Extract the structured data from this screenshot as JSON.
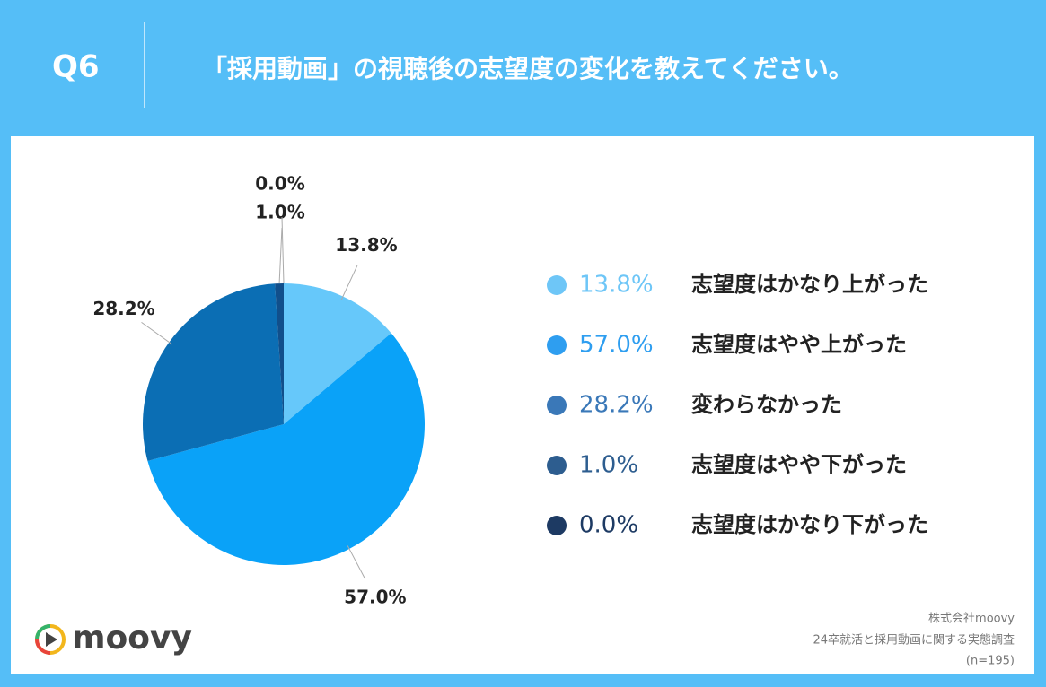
{
  "header": {
    "label": "Q6",
    "title": "「採用動画」の視聴後の志望度の変化を教えてください。"
  },
  "chart_data": {
    "type": "pie",
    "categories": [
      "志望度はかなり上がった",
      "志望度はやや上がった",
      "変わらなかった",
      "志望度はやや下がった",
      "志望度はかなり下がった"
    ],
    "values": [
      13.8,
      57.0,
      28.2,
      1.0,
      0.0
    ],
    "value_labels": [
      "13.8%",
      "57.0%",
      "28.2%",
      "1.0%",
      "0.0%"
    ],
    "colors": [
      "#66c8fa",
      "#0aa2f8",
      "#0b6eb4",
      "#114f8b",
      "#1d3a63"
    ],
    "legend_colors": [
      "#6ec6f7",
      "#2e9ef0",
      "#3a78b8",
      "#2d5d8f",
      "#1d3a63"
    ]
  },
  "footer": {
    "company": "株式会社moovy",
    "survey": "24卒就活と採用動画に関する実態調査",
    "sample": "(n=195)"
  },
  "logo": "moovy"
}
